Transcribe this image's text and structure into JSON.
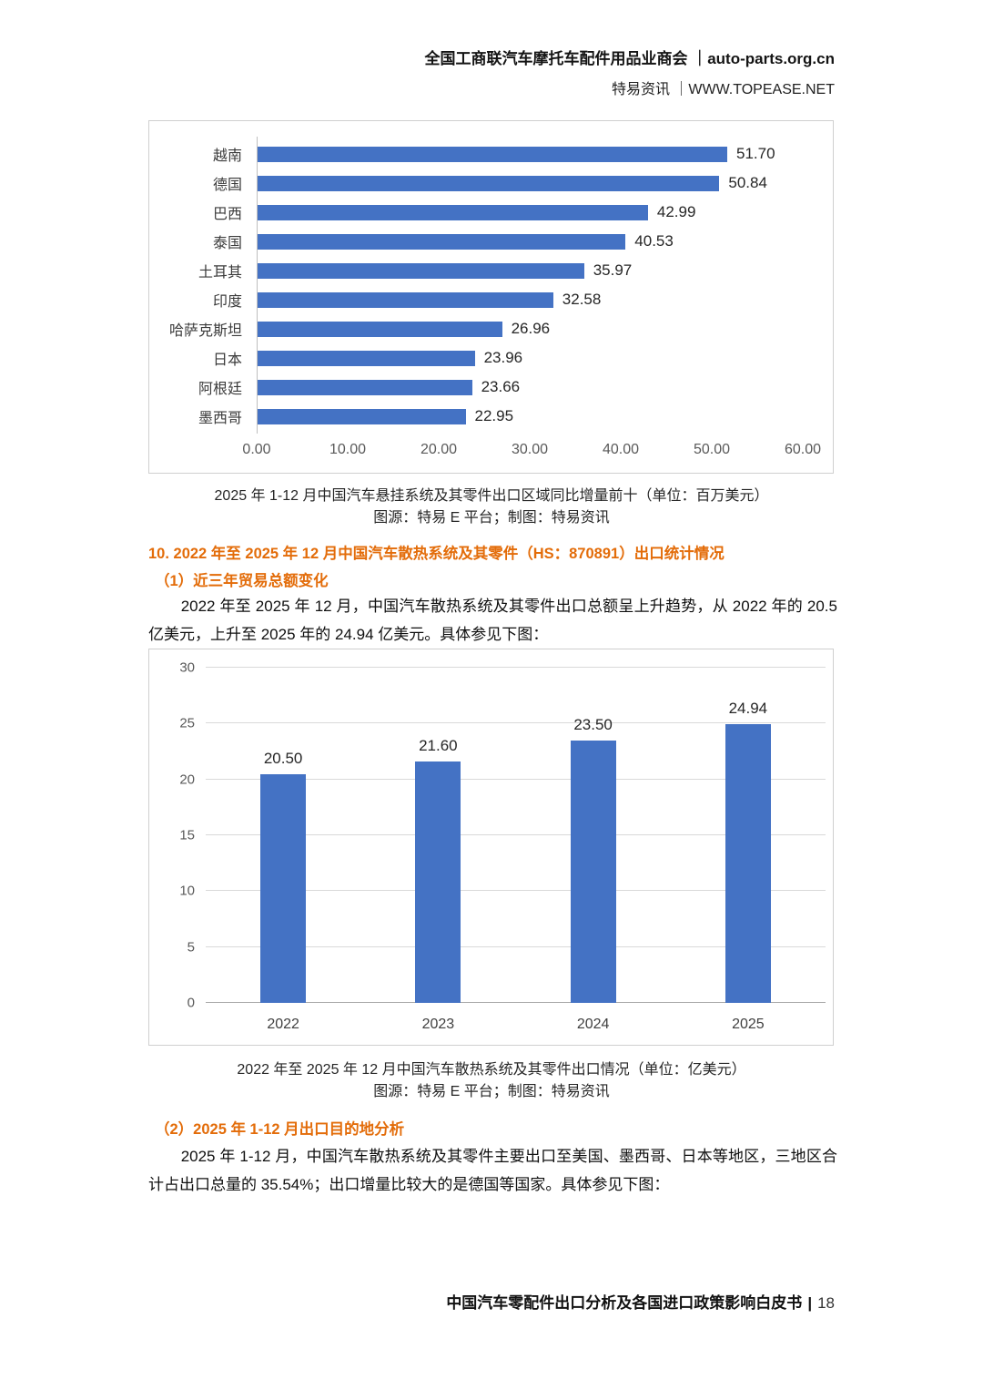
{
  "colors": {
    "bar_blue": "#4472C4",
    "accent_orange": "#E36C09"
  },
  "header": {
    "line1": "全国工商联汽车摩托车配件用品业商会 ｜auto-parts.org.cn",
    "line2": "特易资讯 ｜WWW.TOPEASE.NET"
  },
  "section10": {
    "heading": "10. 2022 年至 2025 年 12 月中国汽车散热系统及其零件（HS：870891）出口统计情况",
    "sub1": "（1）近三年贸易总额变化",
    "para1": "2022 年至 2025 年 12 月，中国汽车散热系统及其零件出口总额呈上升趋势，从 2022 年的 20.5 亿美元，上升至 2025 年的 24.94 亿美元。具体参见下图：",
    "sub2": "（2）2025 年 1-12 月出口目的地分析",
    "para2": "2025 年 1-12 月，中国汽车散热系统及其零件主要出口至美国、墨西哥、日本等地区，三地区合计占出口总量的 35.54%；出口增量比较大的是德国等国家。具体参见下图："
  },
  "chart_data": [
    {
      "type": "bar",
      "orientation": "horizontal",
      "title": "2025 年 1-12 月中国汽车悬挂系统及其零件出口区域同比增量前十",
      "categories": [
        "越南",
        "德国",
        "巴西",
        "泰国",
        "土耳其",
        "印度",
        "哈萨克斯坦",
        "日本",
        "阿根廷",
        "墨西哥"
      ],
      "values": [
        51.7,
        50.84,
        42.99,
        40.53,
        35.97,
        32.58,
        26.96,
        23.96,
        23.66,
        22.95
      ],
      "value_labels": [
        "51.70",
        "50.84",
        "42.99",
        "40.53",
        "35.97",
        "32.58",
        "26.96",
        "23.96",
        "23.66",
        "22.95"
      ],
      "xlim": [
        0,
        60
      ],
      "x_ticks": [
        "0.00",
        "10.00",
        "20.00",
        "30.00",
        "40.00",
        "50.00",
        "60.00"
      ],
      "grid": "off",
      "legend": "none",
      "caption": "2025 年 1-12 月中国汽车悬挂系统及其零件出口区域同比增量前十（单位：百万美元）",
      "source": "图源：特易 E 平台；制图：特易资讯"
    },
    {
      "type": "bar",
      "orientation": "vertical",
      "title": "2022 年至 2025 年 12 月中国汽车散热系统及其零件出口情况",
      "categories": [
        "2022",
        "2023",
        "2024",
        "2025"
      ],
      "values": [
        20.5,
        21.6,
        23.5,
        24.94
      ],
      "value_labels": [
        "20.50",
        "21.60",
        "23.50",
        "24.94"
      ],
      "ylim": [
        0,
        30
      ],
      "y_ticks": [
        0,
        5,
        10,
        15,
        20,
        25,
        30
      ],
      "grid": "horizontal",
      "legend": "none",
      "caption": "2022 年至 2025 年 12 月中国汽车散热系统及其零件出口情况（单位：亿美元）",
      "source": "图源：特易 E 平台；制图：特易资讯"
    }
  ],
  "footer": {
    "title": "中国汽车零配件出口分析及各国进口政策影响白皮书",
    "separator": "|",
    "page": "18"
  }
}
